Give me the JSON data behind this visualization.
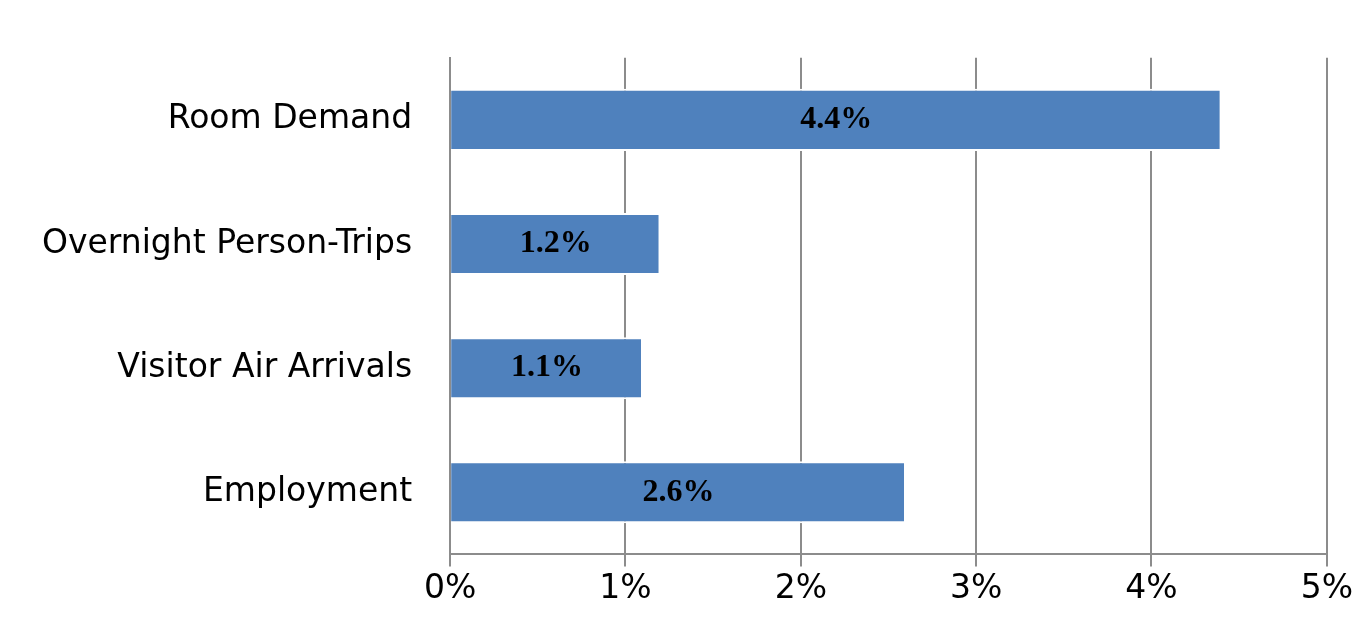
{
  "chart_data": {
    "type": "bar",
    "orientation": "horizontal",
    "categories": [
      "Room Demand",
      "Overnight Person-Trips",
      "Visitor Air Arrivals",
      "Employment"
    ],
    "values": [
      4.4,
      1.2,
      1.1,
      2.6
    ],
    "value_labels": [
      "4.4%",
      "1.2%",
      "1.1%",
      "2.6%"
    ],
    "color": "#4f81bd",
    "xlim": [
      0,
      5
    ],
    "xticks": [
      {
        "value": 0,
        "label": "0%"
      },
      {
        "value": 1,
        "label": "1%"
      },
      {
        "value": 2,
        "label": "2%"
      },
      {
        "value": 3,
        "label": "3%"
      },
      {
        "value": 4,
        "label": "4%"
      },
      {
        "value": 5,
        "label": "5%"
      }
    ],
    "grid": "x"
  }
}
